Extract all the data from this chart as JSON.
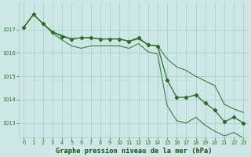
{
  "x": [
    0,
    1,
    2,
    3,
    4,
    5,
    6,
    7,
    8,
    9,
    10,
    11,
    12,
    13,
    14,
    15,
    16,
    17,
    18,
    19,
    20,
    21,
    22,
    23
  ],
  "line_main": [
    1017.1,
    1017.65,
    1017.25,
    1016.9,
    1016.7,
    1016.6,
    1016.65,
    1016.65,
    1016.6,
    1016.6,
    1016.6,
    1016.5,
    1016.65,
    1016.35,
    1016.3,
    1014.85,
    1014.1,
    1014.1,
    1014.2,
    1013.85,
    1013.55,
    1013.05,
    1013.25,
    1013.0
  ],
  "line_top": [
    1017.1,
    1017.65,
    1017.25,
    1016.9,
    1016.75,
    1016.6,
    1016.65,
    1016.65,
    1016.6,
    1016.6,
    1016.6,
    1016.5,
    1016.6,
    1016.35,
    1016.3,
    1015.75,
    1015.4,
    1015.25,
    1015.0,
    1014.8,
    1014.6,
    1013.8,
    1013.6,
    1013.45
  ],
  "line_bot": [
    1017.1,
    1017.65,
    1017.25,
    1016.85,
    1016.55,
    1016.3,
    1016.2,
    1016.3,
    1016.3,
    1016.3,
    1016.3,
    1016.2,
    1016.4,
    1016.05,
    1015.95,
    1013.75,
    1013.1,
    1013.0,
    1013.25,
    1012.9,
    1012.65,
    1012.45,
    1012.6,
    1012.35
  ],
  "ylim": [
    1012.4,
    1018.15
  ],
  "yticks": [
    1013,
    1014,
    1015,
    1016,
    1017
  ],
  "xticks": [
    0,
    1,
    2,
    3,
    4,
    5,
    6,
    7,
    8,
    9,
    10,
    11,
    12,
    13,
    14,
    15,
    16,
    17,
    18,
    19,
    20,
    21,
    22,
    23
  ],
  "line_color": "#2d6a2d",
  "bg_color": "#cde8e4",
  "grid_color": "#a0ccc8",
  "xlabel": "Graphe pression niveau de la mer (hPa)",
  "xlabel_color": "#1a4a1a"
}
